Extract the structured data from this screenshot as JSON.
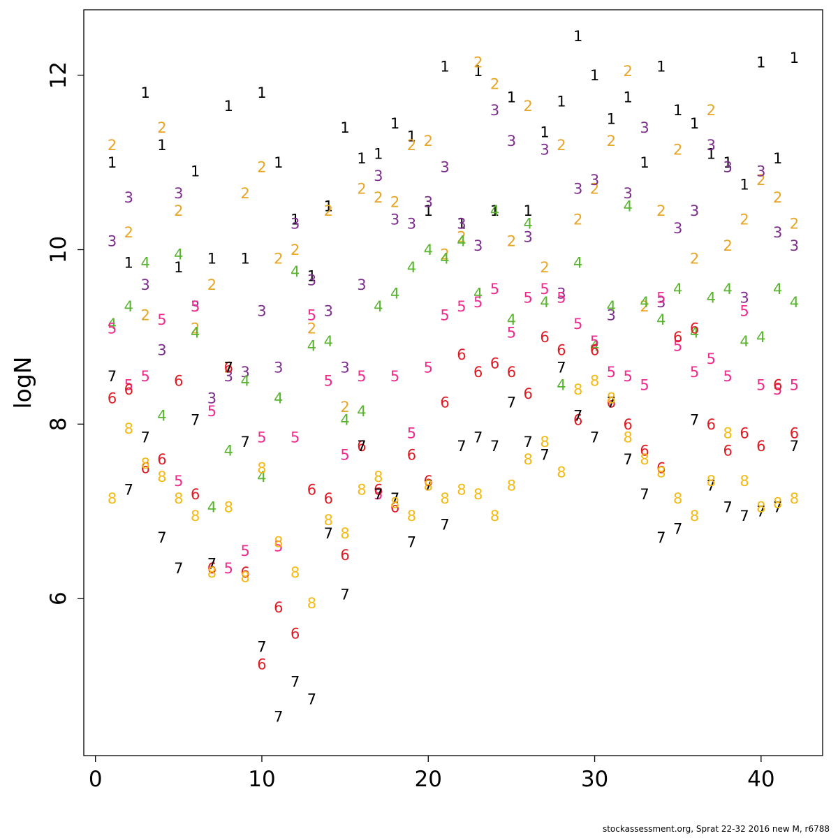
{
  "caption": "stockassessment.org, Sprat 22-32 2016 new M, r6788",
  "chart_data": {
    "type": "scatter",
    "title": "",
    "xlabel": "",
    "ylabel": "logN",
    "point_style": "age-number-glyphs",
    "xlim": [
      -0.7,
      43.7
    ],
    "ylim": [
      4.2,
      12.75
    ],
    "x_ticks": [
      0,
      10,
      20,
      30,
      40
    ],
    "y_ticks": [
      6,
      8,
      10,
      12
    ],
    "grid": false,
    "legend": "none",
    "x": [
      1,
      2,
      3,
      4,
      5,
      6,
      7,
      8,
      9,
      10,
      11,
      12,
      13,
      14,
      15,
      16,
      17,
      18,
      19,
      20,
      21,
      22,
      23,
      24,
      25,
      26,
      27,
      28,
      29,
      30,
      31,
      32,
      33,
      34,
      35,
      36,
      37,
      38,
      39,
      40,
      41,
      42
    ],
    "series": [
      {
        "name": "age 1",
        "symbol": "1",
        "color": "#000000",
        "values": [
          11.0,
          9.85,
          11.8,
          11.2,
          9.8,
          10.9,
          9.9,
          11.65,
          9.9,
          11.8,
          11.0,
          10.35,
          9.7,
          10.5,
          11.4,
          11.05,
          11.1,
          11.45,
          11.3,
          10.45,
          12.1,
          10.3,
          12.05,
          10.45,
          11.75,
          10.45,
          11.35,
          11.7,
          12.45,
          12.0,
          11.5,
          11.75,
          11.0,
          12.1,
          11.6,
          11.45,
          11.1,
          11.0,
          10.75,
          12.15,
          11.05,
          12.2
        ]
      },
      {
        "name": "age 2",
        "symbol": "2",
        "color": "#E8A423",
        "values": [
          11.2,
          10.2,
          9.25,
          11.4,
          10.45,
          9.1,
          9.6,
          8.65,
          10.65,
          10.95,
          9.9,
          10.0,
          9.1,
          10.45,
          8.2,
          10.7,
          10.6,
          10.55,
          11.2,
          11.25,
          9.95,
          10.15,
          12.15,
          11.9,
          10.1,
          11.65,
          9.8,
          11.2,
          10.35,
          10.7,
          11.25,
          12.05,
          9.35,
          10.45,
          11.15,
          9.9,
          11.6,
          10.05,
          10.35,
          10.8,
          10.6,
          10.3
        ]
      },
      {
        "name": "age 3",
        "symbol": "3",
        "color": "#7D2E8D",
        "values": [
          10.1,
          10.6,
          9.6,
          8.85,
          10.65,
          9.35,
          8.3,
          8.55,
          8.6,
          9.3,
          8.65,
          10.3,
          9.65,
          9.3,
          8.65,
          9.6,
          10.85,
          10.35,
          10.3,
          10.55,
          10.95,
          10.3,
          10.05,
          11.6,
          11.25,
          10.15,
          11.15,
          9.5,
          10.7,
          10.8,
          9.25,
          10.65,
          11.4,
          9.4,
          10.25,
          10.45,
          11.2,
          10.95,
          9.45,
          10.9,
          10.2,
          10.05
        ]
      },
      {
        "name": "age 4",
        "symbol": "4",
        "color": "#58B32E",
        "values": [
          9.15,
          9.35,
          9.85,
          8.1,
          9.95,
          9.05,
          7.05,
          7.7,
          8.5,
          7.4,
          8.3,
          9.75,
          8.9,
          8.95,
          8.05,
          8.15,
          9.35,
          9.5,
          9.8,
          10.0,
          9.9,
          10.1,
          9.5,
          10.45,
          9.2,
          10.3,
          9.4,
          8.45,
          9.85,
          8.9,
          9.35,
          10.5,
          9.4,
          9.2,
          9.55,
          9.05,
          9.45,
          9.55,
          8.95,
          9.0,
          9.55,
          9.4
        ]
      },
      {
        "name": "age 5",
        "symbol": "5",
        "color": "#EE2A8B",
        "values": [
          9.1,
          8.45,
          8.55,
          9.2,
          7.35,
          9.35,
          8.15,
          6.35,
          6.55,
          7.85,
          6.6,
          7.85,
          9.25,
          8.5,
          7.65,
          8.55,
          7.2,
          8.55,
          7.9,
          8.65,
          9.25,
          9.35,
          9.4,
          9.55,
          9.05,
          9.45,
          9.55,
          9.45,
          9.15,
          8.95,
          8.6,
          8.55,
          8.45,
          9.45,
          8.9,
          8.6,
          8.75,
          8.55,
          9.3,
          8.45,
          8.4,
          8.45
        ]
      },
      {
        "name": "age 6",
        "symbol": "6",
        "color": "#E01A23",
        "values": [
          8.3,
          8.4,
          7.5,
          7.6,
          8.5,
          7.2,
          6.35,
          8.65,
          6.3,
          5.25,
          5.9,
          5.6,
          7.25,
          7.15,
          6.5,
          7.75,
          7.25,
          7.05,
          7.65,
          7.35,
          8.25,
          8.8,
          8.6,
          8.7,
          8.6,
          8.35,
          9.0,
          8.85,
          8.05,
          8.85,
          8.25,
          8.0,
          7.7,
          7.5,
          9.0,
          9.1,
          8.0,
          7.7,
          7.9,
          7.75,
          8.45,
          7.9
        ]
      },
      {
        "name": "age 7",
        "symbol": "7",
        "color": "#000000",
        "values": [
          8.55,
          7.25,
          7.85,
          6.7,
          6.35,
          8.05,
          6.4,
          8.65,
          7.8,
          5.45,
          4.65,
          5.05,
          4.85,
          6.75,
          6.05,
          7.75,
          7.2,
          7.15,
          6.65,
          7.3,
          6.85,
          7.75,
          7.85,
          7.75,
          8.25,
          7.8,
          7.65,
          8.65,
          8.1,
          7.85,
          8.25,
          7.6,
          7.2,
          6.7,
          6.8,
          8.05,
          7.3,
          7.05,
          6.95,
          7.0,
          7.05,
          7.75
        ]
      },
      {
        "name": "age 8",
        "symbol": "8",
        "color": "#F5B913",
        "values": [
          7.15,
          7.95,
          7.55,
          7.4,
          7.15,
          6.95,
          6.3,
          7.05,
          6.25,
          7.5,
          6.65,
          6.3,
          5.95,
          6.9,
          6.75,
          7.25,
          7.4,
          7.1,
          6.95,
          7.3,
          7.15,
          7.25,
          7.2,
          6.95,
          7.3,
          7.6,
          7.8,
          7.45,
          8.4,
          8.5,
          8.3,
          7.85,
          7.6,
          7.45,
          7.15,
          6.95,
          7.35,
          7.9,
          7.35,
          7.05,
          7.1,
          7.15
        ]
      }
    ]
  }
}
